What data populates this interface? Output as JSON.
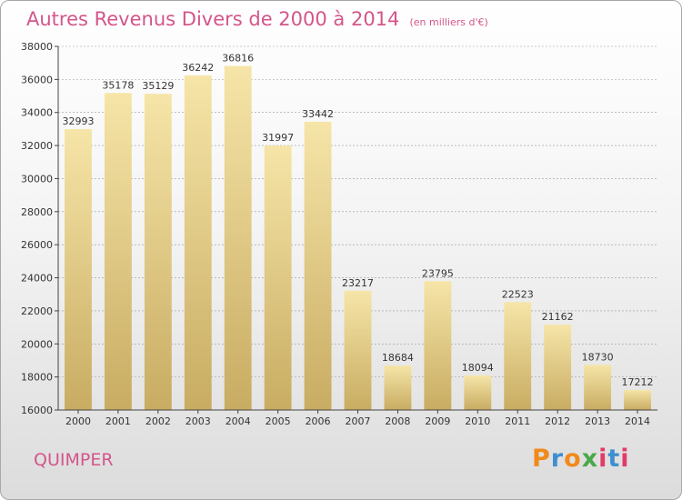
{
  "header": {
    "title": "Autres Revenus Divers de 2000 à 2014",
    "unit": "(en milliers d'€)"
  },
  "footer": {
    "city": "QUIMPER",
    "brand": [
      "P",
      "r",
      "o",
      "x",
      "i",
      "t",
      "i"
    ]
  },
  "colors": {
    "title": "#d4558a",
    "bar_light": "#f6e5a8",
    "bar_dark": "#c8ac62",
    "axis": "#444444",
    "grid": "#999999",
    "brand": [
      "#f08a1c",
      "#3f8fd0",
      "#f08a1c",
      "#4aa84a",
      "#e23b6a",
      "#3f8fd0",
      "#e23b6a"
    ]
  },
  "chart_data": {
    "type": "bar",
    "title": "Autres Revenus Divers de 2000 à 2014",
    "xlabel": "",
    "ylabel": "",
    "categories": [
      "2000",
      "2001",
      "2002",
      "2003",
      "2004",
      "2005",
      "2006",
      "2007",
      "2008",
      "2009",
      "2010",
      "2011",
      "2012",
      "2013",
      "2014"
    ],
    "values": [
      32993,
      35178,
      35129,
      36242,
      36816,
      31997,
      33442,
      23217,
      18684,
      23795,
      18094,
      22523,
      21162,
      18730,
      17212
    ],
    "value_labels": [
      "32993",
      "35178",
      "35129",
      "36242",
      "36816",
      "31997",
      "33442",
      "23217",
      "18684",
      "23795",
      "18094",
      "22523",
      "21162",
      "18730",
      "17212"
    ],
    "ylim": [
      16000,
      38000
    ],
    "yticks": [
      16000,
      18000,
      20000,
      22000,
      24000,
      26000,
      28000,
      30000,
      32000,
      34000,
      36000,
      38000
    ],
    "ytick_labels": [
      "16000",
      "18000",
      "20000",
      "22000",
      "24000",
      "26000",
      "28000",
      "30000",
      "32000",
      "34000",
      "36000",
      "38000"
    ],
    "grid": "horizontal dashed",
    "legend": "none"
  }
}
